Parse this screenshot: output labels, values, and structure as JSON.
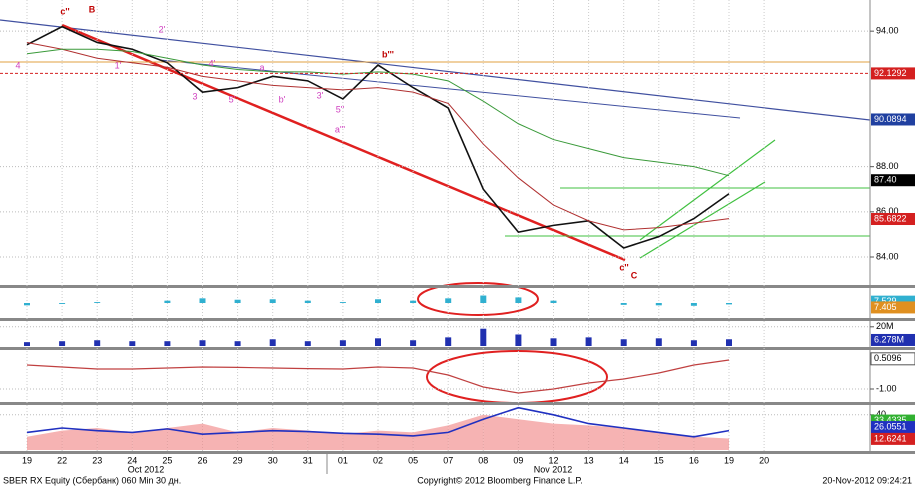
{
  "chart_data": [
    {
      "type": "line",
      "categories": [
        "19",
        "22",
        "23",
        "24",
        "25",
        "26",
        "29",
        "30",
        "31",
        "01",
        "02",
        "05",
        "07",
        "08",
        "09",
        "12",
        "13",
        "14",
        "15",
        "16",
        "19",
        "20"
      ],
      "x_group_labels": [
        "Oct 2012",
        "Nov 2012"
      ],
      "series": [
        {
          "color": "#111111",
          "values": [
            93.4,
            94.2,
            93.5,
            93.2,
            92.6,
            91.3,
            91.5,
            92.0,
            91.8,
            91.0,
            92.5,
            91.5,
            90.6,
            87.0,
            85.1,
            85.4,
            85.6,
            84.4,
            84.9,
            85.7,
            86.8,
            null
          ]
        },
        {
          "color": "#b03030",
          "values": [
            93.5,
            93.2,
            92.8,
            92.6,
            92.4,
            92.0,
            91.8,
            91.6,
            91.5,
            91.4,
            91.5,
            91.3,
            90.8,
            89.0,
            87.5,
            86.3,
            85.6,
            85.2,
            85.3,
            85.5,
            85.7,
            null
          ]
        },
        {
          "color": "#3a9a3a",
          "values": [
            93.0,
            93.2,
            93.2,
            93.1,
            92.8,
            92.5,
            92.3,
            92.2,
            92.2,
            92.1,
            92.2,
            92.1,
            91.8,
            90.9,
            89.9,
            89.2,
            88.8,
            88.4,
            88.2,
            88.0,
            87.6,
            null
          ]
        }
      ],
      "ylim": [
        82.76,
        95.38
      ],
      "yticks": [
        {
          "value": 84,
          "label": "84.00"
        },
        {
          "value": 86,
          "label": "86.00"
        },
        {
          "value": 88,
          "label": "88.00"
        },
        {
          "value": 94,
          "label": "94.00"
        }
      ],
      "tags": [
        {
          "value": 92.1292,
          "color": "#d42020"
        },
        {
          "value": 90.0894,
          "color": "#2040a0"
        },
        {
          "value": 87.4,
          "label": "87.40",
          "color": "#000000"
        },
        {
          "value": 85.6822,
          "color": "#d42020"
        }
      ],
      "annotations": [
        {
          "text": "c''",
          "color": "#c00000"
        },
        {
          "text": "B",
          "color": "#c00000"
        },
        {
          "text": "b'''",
          "color": "#c00000"
        },
        {
          "text": "c''",
          "color": "#c00000"
        },
        {
          "text": "C",
          "color": "#c00000"
        },
        {
          "text": "4",
          "color": "#d040c0"
        },
        {
          "text": "1'",
          "color": "#d040c0"
        },
        {
          "text": "2'",
          "color": "#d040c0"
        },
        {
          "text": "3",
          "color": "#d040c0"
        },
        {
          "text": "4'",
          "color": "#d040c0"
        },
        {
          "text": "5'",
          "color": "#d040c0"
        },
        {
          "text": "a",
          "color": "#d040c0"
        },
        {
          "text": "b'",
          "color": "#d040c0"
        },
        {
          "text": "5''",
          "color": "#d040c0"
        },
        {
          "text": "3'",
          "color": "#d040c0"
        },
        {
          "text": "a'''",
          "color": "#d040c0"
        }
      ]
    },
    {
      "type": "bar",
      "color": "#30b0d0",
      "values": [
        7.45,
        7.48,
        7.52,
        7.5,
        7.55,
        7.6,
        7.57,
        7.58,
        7.55,
        7.52,
        7.58,
        7.55,
        7.6,
        7.66,
        7.62,
        7.55,
        7.5,
        7.46,
        7.45,
        7.44,
        7.47,
        null
      ],
      "ylim": [
        7.2,
        7.8
      ],
      "tags": [
        {
          "value": 7.529,
          "color": "#30b0d0"
        },
        {
          "value": 7.405,
          "color": "#e09020"
        }
      ]
    },
    {
      "type": "bar",
      "color": "#2030b0",
      "values": [
        4000000,
        5000000,
        6000000,
        5000000,
        5000000,
        6000000,
        5000000,
        7000000,
        5000000,
        6000000,
        8000000,
        6000000,
        9000000,
        18000000,
        12000000,
        8000000,
        9000000,
        7000000,
        8000000,
        6000000,
        7000000,
        null
      ],
      "ylim": [
        0,
        25000000
      ],
      "yticks": [
        {
          "value": 20000000,
          "label": "20M"
        }
      ],
      "tags": [
        {
          "value": 6278000,
          "label": "6.278M",
          "color": "#2030b0"
        }
      ]
    },
    {
      "type": "line",
      "color": "#c04040",
      "values": [
        0.2,
        0.1,
        0.0,
        0.0,
        0.05,
        0.1,
        0.08,
        0.05,
        0.02,
        0.0,
        0.1,
        0.05,
        -0.3,
        -0.9,
        -1.2,
        -1.0,
        -0.7,
        -0.5,
        -0.2,
        0.2,
        0.45,
        null
      ],
      "ylim": [
        -1.6,
        0.9
      ],
      "yticks": [
        {
          "value": -1,
          "label": "-1.00"
        }
      ],
      "tags": [
        {
          "value": 0.5096,
          "color": "#ffffff"
        }
      ]
    },
    {
      "type": "line",
      "series": [
        {
          "color": "#f08080",
          "values": [
            15,
            22,
            25,
            20,
            25,
            30,
            20,
            25,
            22,
            18,
            22,
            20,
            28,
            40,
            35,
            30,
            28,
            25,
            20,
            15,
            13,
            null
          ]
        },
        {
          "color": "#2030c0",
          "values": [
            20,
            25,
            22,
            20,
            24,
            18,
            20,
            22,
            21,
            19,
            18,
            16,
            20,
            35,
            48,
            40,
            30,
            25,
            20,
            15,
            22,
            null
          ]
        }
      ],
      "ylim": [
        0,
        50
      ],
      "yticks": [
        40
      ],
      "tags": [
        {
          "value": 33.4335,
          "color": "#30b030"
        },
        {
          "value": 26.0551,
          "color": "#2030c0"
        },
        {
          "value": 12.6241,
          "color": "#d42020"
        }
      ]
    }
  ],
  "footer": {
    "left": "SBER RX Equity (Сбербанк) 060 Min 30 дн.",
    "center": "Copyright© 2012 Bloomberg Finance L.P.",
    "right": "20-Nov-2012 09:24:21"
  }
}
